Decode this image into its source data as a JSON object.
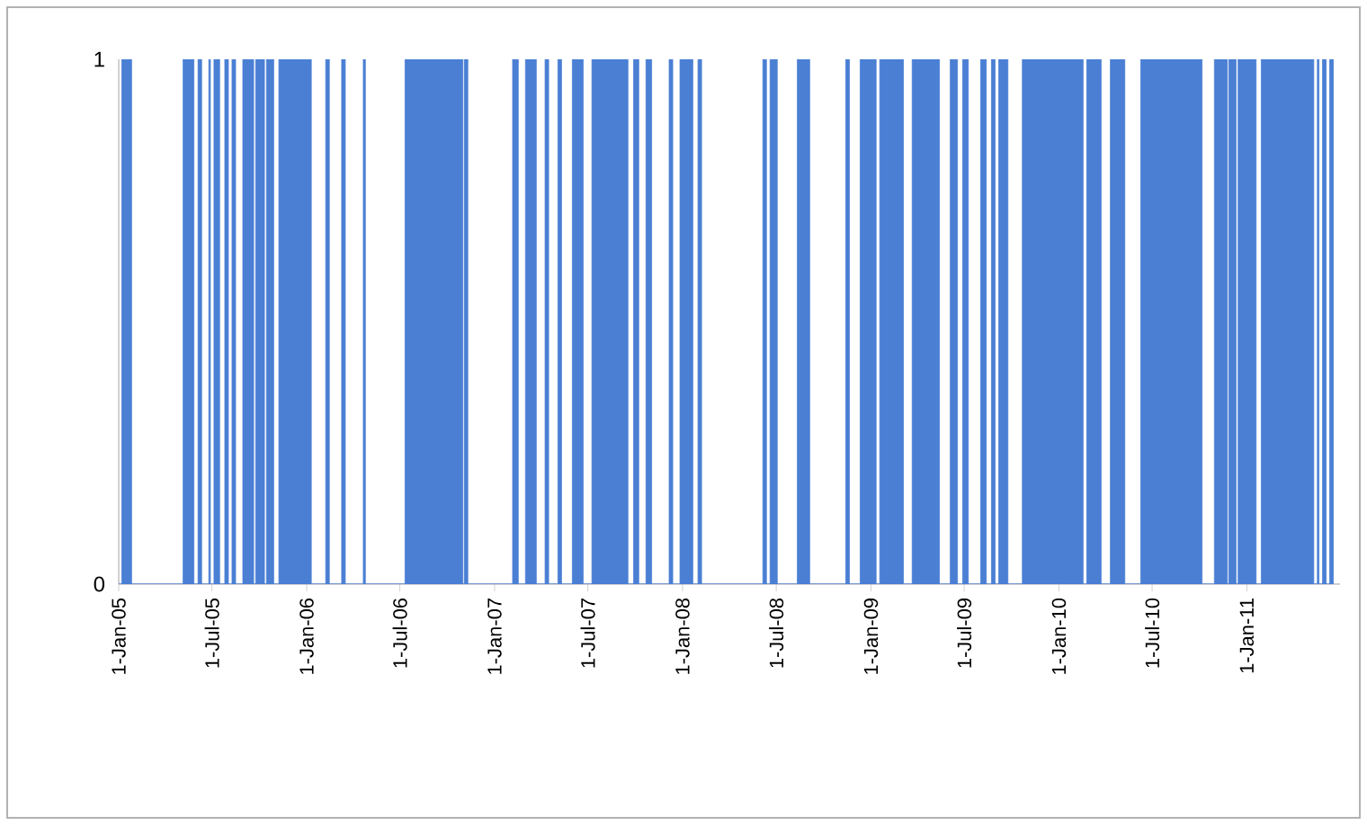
{
  "chart_data": {
    "type": "area",
    "color": "#4a7fd4",
    "x": [
      "2005-01-01",
      "2005-01-07",
      "2005-01-07",
      "2005-01-26",
      "2005-01-26",
      "2005-05-06",
      "2005-05-06",
      "2005-05-27",
      "2005-05-27",
      "2005-06-04",
      "2005-06-04",
      "2005-06-11",
      "2005-06-11",
      "2005-06-25",
      "2005-06-25",
      "2005-06-28",
      "2005-06-28",
      "2005-07-05",
      "2005-07-05",
      "2005-07-16",
      "2005-07-16",
      "2005-07-26",
      "2005-07-26",
      "2005-08-02",
      "2005-08-02",
      "2005-08-09",
      "2005-08-09",
      "2005-08-16",
      "2005-08-16",
      "2005-08-30",
      "2005-08-30",
      "2005-09-20",
      "2005-09-20",
      "2005-09-24",
      "2005-09-24",
      "2005-10-11",
      "2005-10-11",
      "2005-10-15",
      "2005-10-15",
      "2005-10-29",
      "2005-10-29",
      "2005-11-08",
      "2005-11-08",
      "2006-01-10",
      "2006-01-10",
      "2006-02-07",
      "2006-02-07",
      "2006-02-14",
      "2006-02-14",
      "2006-03-10",
      "2006-03-10",
      "2006-03-17",
      "2006-03-17",
      "2006-04-21",
      "2006-04-21",
      "2006-04-25",
      "2006-04-25",
      "2006-07-11",
      "2006-07-11",
      "2006-10-31",
      "2006-10-31",
      "2006-11-03",
      "2006-11-03",
      "2006-11-10",
      "2006-11-10",
      "2007-02-05",
      "2007-02-05",
      "2007-02-16",
      "2007-02-16",
      "2007-03-02",
      "2007-03-02",
      "2007-03-23",
      "2007-03-23",
      "2007-04-09",
      "2007-04-09",
      "2007-04-16",
      "2007-04-16",
      "2007-05-04",
      "2007-05-04",
      "2007-05-11",
      "2007-05-11",
      "2007-06-01",
      "2007-06-01",
      "2007-06-22",
      "2007-06-22",
      "2007-07-09",
      "2007-07-09",
      "2007-09-17",
      "2007-09-17",
      "2007-09-28",
      "2007-09-28",
      "2007-10-08",
      "2007-10-08",
      "2007-10-22",
      "2007-10-22",
      "2007-11-02",
      "2007-11-02",
      "2007-12-06",
      "2007-12-06",
      "2007-12-13",
      "2007-12-13",
      "2007-12-27",
      "2007-12-27",
      "2008-01-21",
      "2008-01-21",
      "2008-01-31",
      "2008-01-31",
      "2008-02-07",
      "2008-02-07",
      "2008-06-05",
      "2008-06-05",
      "2008-06-12",
      "2008-06-12",
      "2008-06-19",
      "2008-06-19",
      "2008-07-03",
      "2008-07-03",
      "2008-08-11",
      "2008-08-11",
      "2008-09-04",
      "2008-09-04",
      "2008-11-13",
      "2008-11-13",
      "2008-11-20",
      "2008-11-20",
      "2008-12-11",
      "2008-12-11",
      "2009-01-11",
      "2009-01-11",
      "2009-01-18",
      "2009-01-18",
      "2009-03-05",
      "2009-03-05",
      "2009-03-22",
      "2009-03-22",
      "2009-05-14",
      "2009-05-14",
      "2009-06-04",
      "2009-06-04",
      "2009-06-18",
      "2009-06-18",
      "2009-06-28",
      "2009-06-28",
      "2009-07-09",
      "2009-07-09",
      "2009-08-02",
      "2009-08-02",
      "2009-08-13",
      "2009-08-13",
      "2009-08-23",
      "2009-08-23",
      "2009-08-30",
      "2009-08-30",
      "2009-09-06",
      "2009-09-06",
      "2009-09-24",
      "2009-09-24",
      "2009-10-22",
      "2009-10-22",
      "2010-02-17",
      "2010-02-17",
      "2010-02-24",
      "2010-02-24",
      "2010-03-24",
      "2010-03-24",
      "2010-04-11",
      "2010-04-11",
      "2010-05-09",
      "2010-05-09",
      "2010-06-09",
      "2010-06-09",
      "2010-10-06",
      "2010-10-06",
      "2010-10-30",
      "2010-10-30",
      "2010-11-24",
      "2010-11-24",
      "2010-11-27",
      "2010-11-27",
      "2010-12-11",
      "2010-12-11",
      "2010-12-15",
      "2010-12-15",
      "2011-01-19",
      "2011-01-19",
      "2011-01-29",
      "2011-01-29",
      "2011-05-11",
      "2011-05-11",
      "2011-05-18",
      "2011-05-18",
      "2011-05-21",
      "2011-05-21",
      "2011-05-28",
      "2011-05-28",
      "2011-06-04",
      "2011-06-04",
      "2011-06-11",
      "2011-06-11",
      "2011-06-18",
      "2011-06-18"
    ],
    "values": [
      0,
      0,
      1,
      1,
      0,
      0,
      1,
      1,
      0,
      0,
      1,
      1,
      0,
      0,
      1,
      1,
      0,
      0,
      1,
      1,
      0,
      0,
      1,
      1,
      0,
      0,
      1,
      1,
      0,
      0,
      1,
      1,
      0,
      0,
      1,
      1,
      0,
      0,
      1,
      1,
      0,
      0,
      1,
      1,
      0,
      0,
      1,
      1,
      0,
      0,
      1,
      1,
      0,
      0,
      1,
      1,
      0,
      0,
      1,
      1,
      0,
      0,
      1,
      1,
      0,
      0,
      1,
      1,
      0,
      0,
      1,
      1,
      0,
      0,
      1,
      1,
      0,
      0,
      1,
      1,
      0,
      0,
      1,
      1,
      0,
      0,
      1,
      1,
      0,
      0,
      1,
      1,
      0,
      0,
      1,
      1,
      0,
      0,
      1,
      1,
      0,
      0,
      1,
      1,
      0,
      0,
      1,
      1,
      0,
      0,
      1,
      1,
      0,
      0,
      1,
      1,
      0,
      0,
      1,
      1,
      0,
      0,
      1,
      1,
      0,
      0,
      1,
      1,
      0,
      0,
      1,
      1,
      0,
      0,
      1,
      1,
      0,
      0,
      1,
      1,
      0,
      0,
      1,
      1,
      0,
      0,
      1,
      1,
      0,
      0,
      1,
      1,
      0,
      0,
      1,
      1,
      0,
      0,
      1,
      1,
      0,
      0,
      1,
      1,
      0,
      0,
      1,
      1,
      0,
      0,
      1,
      1,
      0,
      0,
      1,
      1,
      0,
      0,
      1,
      1,
      0,
      0,
      1,
      1,
      0,
      0,
      1,
      1,
      0,
      0,
      1,
      1,
      0,
      0,
      1,
      1,
      0,
      0,
      1,
      1,
      0
    ],
    "xlim": [
      "2005-01-01",
      "2011-07-01"
    ],
    "xticks": [
      {
        "value": "2005-01-01",
        "label": "1-Jan-05"
      },
      {
        "value": "2005-07-01",
        "label": "1-Jul-05"
      },
      {
        "value": "2006-01-01",
        "label": "1-Jan-06"
      },
      {
        "value": "2006-07-01",
        "label": "1-Jul-06"
      },
      {
        "value": "2007-01-01",
        "label": "1-Jan-07"
      },
      {
        "value": "2007-07-01",
        "label": "1-Jul-07"
      },
      {
        "value": "2008-01-01",
        "label": "1-Jan-08"
      },
      {
        "value": "2008-07-01",
        "label": "1-Jul-08"
      },
      {
        "value": "2009-01-01",
        "label": "1-Jan-09"
      },
      {
        "value": "2009-07-01",
        "label": "1-Jul-09"
      },
      {
        "value": "2010-01-01",
        "label": "1-Jan-10"
      },
      {
        "value": "2010-07-01",
        "label": "1-Jul-10"
      },
      {
        "value": "2011-01-01",
        "label": "1-Jan-11"
      }
    ],
    "ylim": [
      0,
      1
    ],
    "yticks": [
      0,
      1
    ]
  }
}
